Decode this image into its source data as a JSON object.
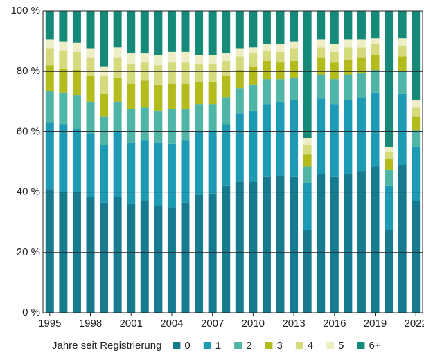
{
  "chart_data": {
    "type": "stacked_bar",
    "categories": [
      "1995",
      null,
      null,
      "1998",
      null,
      null,
      "2001",
      null,
      null,
      "2004",
      null,
      null,
      "2007",
      null,
      null,
      "2010",
      null,
      null,
      "2013",
      null,
      null,
      "2016",
      null,
      null,
      "2019",
      null,
      null,
      "2022"
    ],
    "legend_title": "Jahre seit Registrierung",
    "series": [
      {
        "name": "0",
        "color": "#177b90",
        "values": [
          41,
          40,
          40,
          38.5,
          36.5,
          38.5,
          36,
          37,
          35.5,
          35,
          36.5,
          39,
          39.5,
          42,
          43.5,
          43.5,
          45,
          45.5,
          45,
          27.5,
          46,
          45,
          46,
          47,
          48.5,
          27.5,
          49,
          37
        ]
      },
      {
        "name": "1",
        "color": "#1d9bb4",
        "values": [
          22,
          22.5,
          21,
          21,
          19,
          21.5,
          20.5,
          20,
          21,
          21,
          20.5,
          21,
          21,
          20.5,
          22.5,
          23.5,
          24,
          24.5,
          25.5,
          15.5,
          25,
          24,
          24.5,
          24.5,
          24.5,
          14.5,
          23.5,
          18
        ]
      },
      {
        "name": "2",
        "color": "#4fb5a6",
        "values": [
          10.5,
          10.5,
          11,
          10.5,
          9.5,
          10,
          11,
          11,
          10.5,
          11.5,
          10.5,
          9,
          8.5,
          9,
          8.5,
          8.5,
          8.5,
          7.5,
          7.5,
          5.5,
          8,
          8.5,
          8.5,
          8,
          7.5,
          5.5,
          7.5,
          5.5
        ]
      },
      {
        "name": "3",
        "color": "#b3bc1c",
        "values": [
          8.5,
          8,
          8.5,
          8.5,
          7.5,
          8,
          8.5,
          9,
          8.5,
          8.5,
          8.5,
          7.5,
          7.5,
          7,
          6,
          6,
          6,
          5.5,
          5.5,
          4,
          5.5,
          5.5,
          5,
          5,
          5,
          3.5,
          5,
          4.5
        ]
      },
      {
        "name": "4",
        "color": "#d5db7c",
        "values": [
          5.5,
          6,
          6,
          6,
          6,
          6.5,
          6.5,
          6,
          6.5,
          7,
          7,
          6,
          6,
          5,
          4.5,
          4.5,
          3.5,
          3.5,
          4,
          3,
          3.5,
          3.5,
          4,
          3.5,
          3.5,
          2.5,
          3.5,
          3
        ]
      },
      {
        "name": "5",
        "color": "#eeeec6",
        "values": [
          3,
          3,
          3,
          3,
          3,
          3.5,
          3.5,
          3,
          3.5,
          3.5,
          3.5,
          3,
          3,
          2.5,
          2.5,
          2,
          2,
          2.5,
          2.5,
          2.5,
          2.5,
          2.5,
          2.5,
          2.5,
          2,
          1.5,
          2.5,
          2.5
        ]
      },
      {
        "name": "6+",
        "color": "#168a78",
        "values": [
          9.5,
          10,
          10.5,
          12.5,
          18.5,
          12,
          14,
          14,
          14.5,
          13.5,
          13.5,
          14.5,
          14.5,
          14,
          12.5,
          12,
          11,
          11,
          10,
          42,
          9.5,
          11,
          9.5,
          9.5,
          9,
          45,
          9,
          29.5
        ]
      }
    ],
    "ylim": [
      0,
      100
    ],
    "yticks": [
      {
        "value": 0,
        "label": "0 %"
      },
      {
        "value": 20,
        "label": "20 %"
      },
      {
        "value": 40,
        "label": "40 %"
      },
      {
        "value": 60,
        "label": "60 %"
      },
      {
        "value": 80,
        "label": "80 %"
      },
      {
        "value": 100,
        "label": "100 %"
      }
    ],
    "grid": true
  }
}
